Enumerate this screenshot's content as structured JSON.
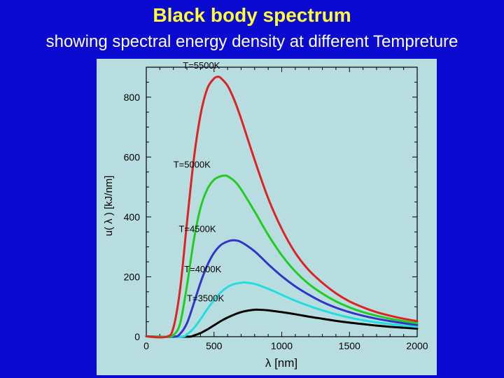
{
  "slide": {
    "title": "Black body spectrum",
    "subtitle": "showing spectral energy density at different  Tempreture"
  },
  "colors": {
    "slide_background": "#0a0ad0",
    "title": "#ffff33",
    "subtitle": "#ffffff",
    "plot_background": "#b8dde0"
  },
  "chart_data": {
    "type": "line",
    "title": "",
    "xlabel": "λ [nm]",
    "ylabel": "u( λ )  [kJ/nm]",
    "xlim": [
      0,
      2000
    ],
    "ylim": [
      0,
      900
    ],
    "x_ticks": [
      0,
      500,
      1000,
      1500,
      2000
    ],
    "y_ticks": [
      0,
      200,
      400,
      600,
      800
    ],
    "grid": false,
    "legend": "inline labels near curve peaks",
    "series": [
      {
        "name": "T=5500K",
        "color": "#dd2222",
        "x": [
          150,
          200,
          250,
          300,
          350,
          400,
          450,
          500,
          527,
          550,
          600,
          650,
          700,
          800,
          900,
          1000,
          1100,
          1200,
          1300,
          1400,
          1500,
          1600,
          1700,
          1800,
          1900,
          2000
        ],
        "y": [
          0,
          30,
          160,
          380,
          590,
          740,
          828,
          862,
          868,
          864,
          838,
          790,
          728,
          590,
          462,
          360,
          280,
          222,
          180,
          145,
          118,
          98,
          82,
          70,
          60,
          52
        ]
      },
      {
        "name": "T=5000K",
        "color": "#22cc22",
        "x": [
          150,
          200,
          250,
          300,
          350,
          400,
          450,
          500,
          550,
          580,
          600,
          650,
          700,
          800,
          900,
          1000,
          1100,
          1200,
          1300,
          1400,
          1500,
          1600,
          1700,
          1800,
          1900,
          2000
        ],
        "y": [
          0,
          5,
          45,
          170,
          320,
          430,
          492,
          524,
          536,
          538,
          536,
          520,
          492,
          418,
          340,
          272,
          218,
          176,
          144,
          118,
          98,
          82,
          70,
          60,
          52,
          45
        ]
      },
      {
        "name": "T=4500K",
        "color": "#3333cc",
        "x": [
          200,
          250,
          300,
          350,
          400,
          450,
          500,
          550,
          600,
          644,
          700,
          800,
          900,
          1000,
          1100,
          1200,
          1300,
          1400,
          1500,
          1600,
          1700,
          1800,
          1900,
          2000
        ],
        "y": [
          0,
          10,
          45,
          110,
          180,
          238,
          280,
          306,
          318,
          322,
          316,
          285,
          242,
          202,
          168,
          140,
          116,
          97,
          82,
          70,
          60,
          52,
          45,
          39
        ]
      },
      {
        "name": "T=4000K",
        "color": "#22dddd",
        "x": [
          250,
          300,
          350,
          400,
          450,
          500,
          550,
          600,
          650,
          700,
          725,
          800,
          900,
          1000,
          1100,
          1200,
          1300,
          1400,
          1500,
          1600,
          1700,
          1800,
          1900,
          2000
        ],
        "y": [
          0,
          8,
          28,
          58,
          92,
          122,
          148,
          166,
          176,
          180,
          181,
          176,
          160,
          140,
          120,
          103,
          88,
          75,
          64,
          55,
          48,
          42,
          37,
          33
        ]
      },
      {
        "name": "T=3500K",
        "color": "#000000",
        "x": [
          300,
          350,
          400,
          450,
          500,
          550,
          600,
          650,
          700,
          750,
          800,
          828,
          900,
          1000,
          1100,
          1200,
          1300,
          1400,
          1500,
          1600,
          1700,
          1800,
          1900,
          2000
        ],
        "y": [
          0,
          4,
          12,
          24,
          38,
          52,
          64,
          74,
          82,
          87,
          90,
          90,
          88,
          82,
          75,
          67,
          60,
          53,
          47,
          42,
          37,
          33,
          30,
          27
        ]
      }
    ],
    "annotations": [
      {
        "text": "T=5500K",
        "x": 270,
        "y": 895
      },
      {
        "text": "T=5000K",
        "x": 200,
        "y": 565
      },
      {
        "text": "T=4500K",
        "x": 240,
        "y": 350
      },
      {
        "text": "T=4000K",
        "x": 280,
        "y": 215
      },
      {
        "text": "T=3500K",
        "x": 300,
        "y": 118
      }
    ]
  }
}
